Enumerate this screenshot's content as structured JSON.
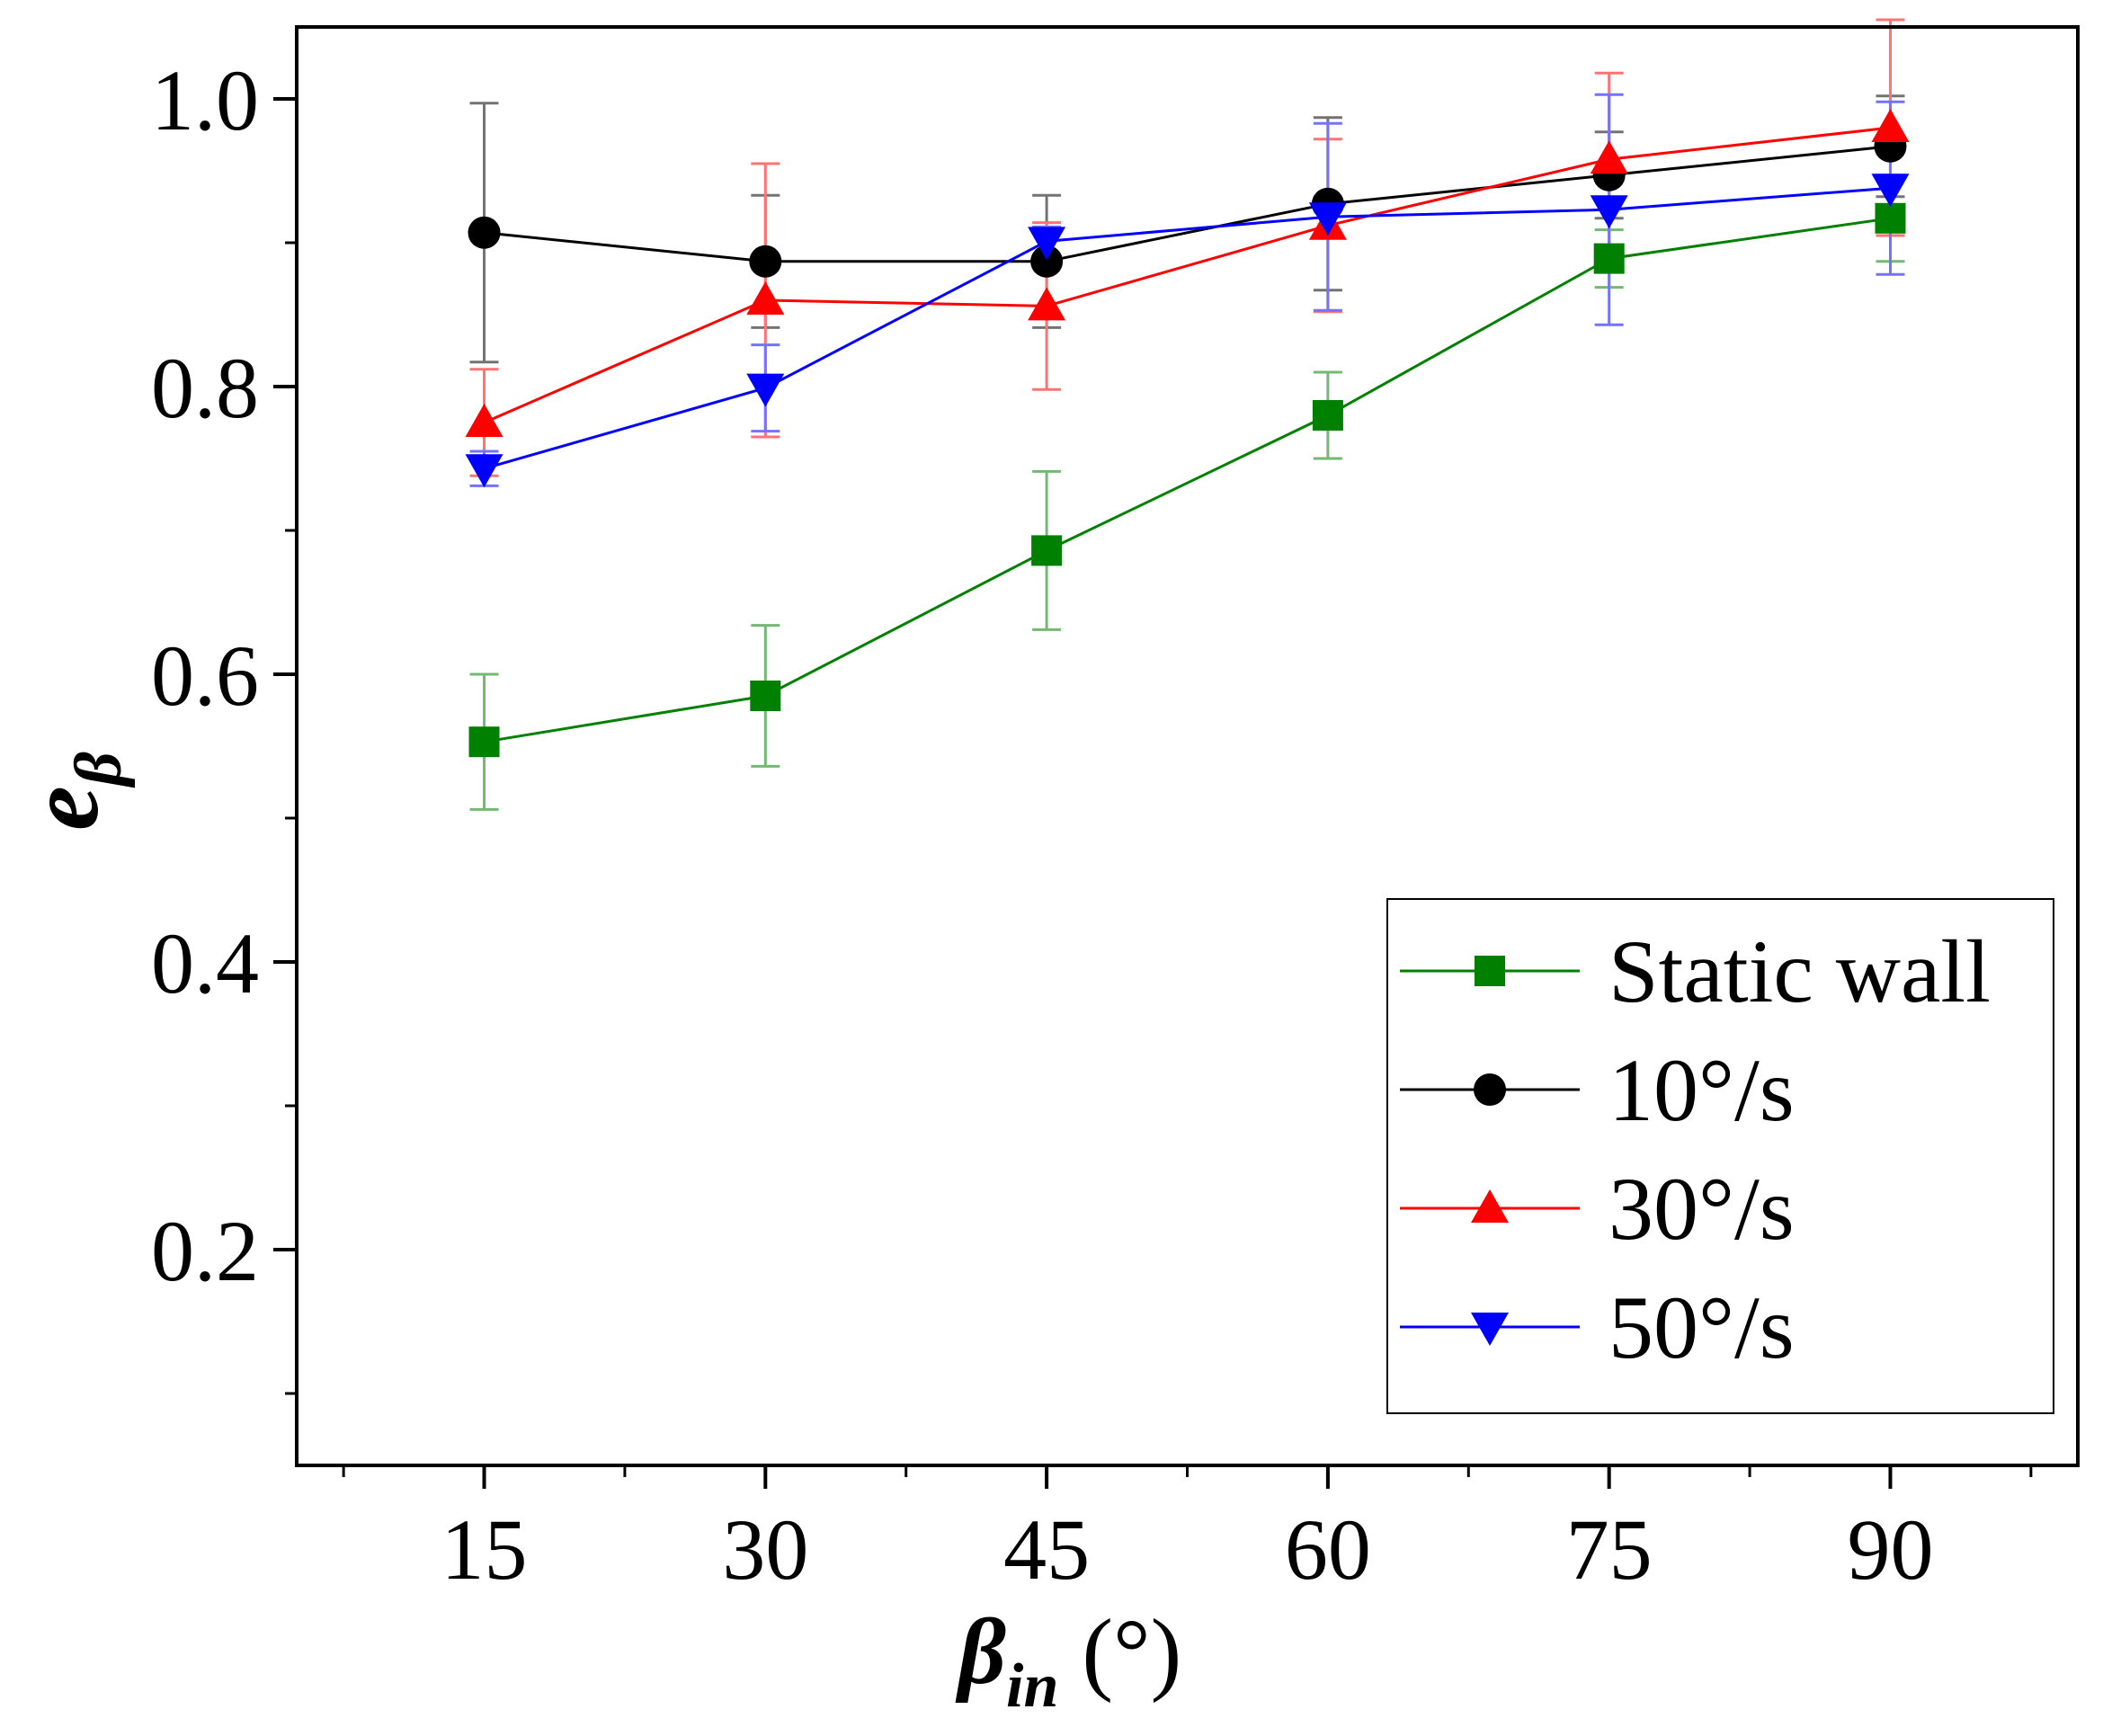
{
  "chart_data": {
    "type": "line",
    "xlabel": {
      "symbol": "β",
      "subscript": "in",
      "unit": " (°)"
    },
    "ylabel": {
      "symbol": "e",
      "subscript": "β"
    },
    "xlim": [
      5,
      100
    ],
    "ylim": [
      0.05,
      1.05
    ],
    "xticks": [
      15,
      30,
      45,
      60,
      75,
      90
    ],
    "xtick_labels": [
      "15",
      "30",
      "45",
      "60",
      "75",
      "90"
    ],
    "yticks": [
      0.2,
      0.4,
      0.6,
      0.8,
      1.0
    ],
    "ytick_labels": [
      "0.2",
      "0.4",
      "0.6",
      "0.8",
      "1.0"
    ],
    "x": [
      15,
      30,
      45,
      60,
      75,
      90
    ],
    "legend_position": "bottom-right",
    "series": [
      {
        "name": "Static wall",
        "color": "#008000",
        "marker": "square",
        "values": [
          0.553,
          0.585,
          0.686,
          0.78,
          0.889,
          0.917
        ],
        "errors": [
          0.047,
          0.049,
          0.055,
          0.03,
          0.02,
          0.03
        ]
      },
      {
        "name": "10°/s",
        "color": "#000000",
        "marker": "circle",
        "values": [
          0.907,
          0.887,
          0.887,
          0.927,
          0.947,
          0.967
        ],
        "errors": [
          0.09,
          0.046,
          0.046,
          0.06,
          0.03,
          0.035
        ]
      },
      {
        "name": "30°/s",
        "color": "#ff0000",
        "marker": "triangle-up",
        "values": [
          0.775,
          0.86,
          0.856,
          0.912,
          0.958,
          0.98
        ],
        "errors": [
          0.037,
          0.095,
          0.058,
          0.06,
          0.06,
          0.075
        ]
      },
      {
        "name": "50°/s",
        "color": "#0000ff",
        "marker": "triangle-down",
        "values": [
          0.743,
          0.799,
          0.901,
          0.918,
          0.923,
          0.938
        ],
        "errors": [
          0.012,
          0.03,
          0.01,
          0.065,
          0.08,
          0.06
        ]
      }
    ]
  }
}
